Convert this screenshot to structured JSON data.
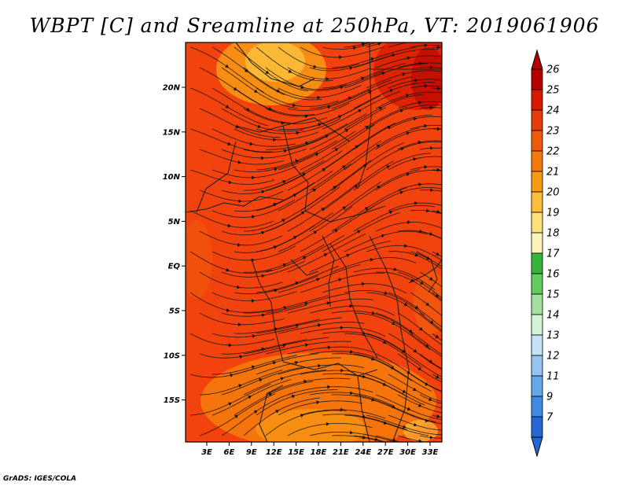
{
  "title": "WBPT [C] and Sreamline at 250hPa, VT: 2019061906",
  "credit": "GrADS: IGES/COLA",
  "map": {
    "lat_labels": [
      "20N",
      "15N",
      "10N",
      "5N",
      "EQ",
      "5S",
      "10S",
      "15S"
    ],
    "lon_labels": [
      "3E",
      "6E",
      "9E",
      "12E",
      "15E",
      "18E",
      "21E",
      "24E",
      "27E",
      "30E",
      "33E"
    ],
    "base_color": "#f2420e",
    "streamline_color": "#111111",
    "border_color": "#222222"
  },
  "colorbar": {
    "labels": [
      "26",
      "25",
      "24",
      "23",
      "22",
      "21",
      "20",
      "19",
      "18",
      "17",
      "16",
      "15",
      "14",
      "13",
      "12",
      "11",
      "9",
      "7"
    ],
    "colors": [
      "#b40000",
      "#d61a00",
      "#e63c0c",
      "#f05a0c",
      "#f57a0c",
      "#f99a14",
      "#fbbd3a",
      "#fde07a",
      "#fcf3b8",
      "#36b43c",
      "#64cc5c",
      "#a4e09e",
      "#d6f2d6",
      "#c4e2f8",
      "#92c6f0",
      "#64a8ea",
      "#3e8ae4",
      "#2268d8"
    ]
  }
}
